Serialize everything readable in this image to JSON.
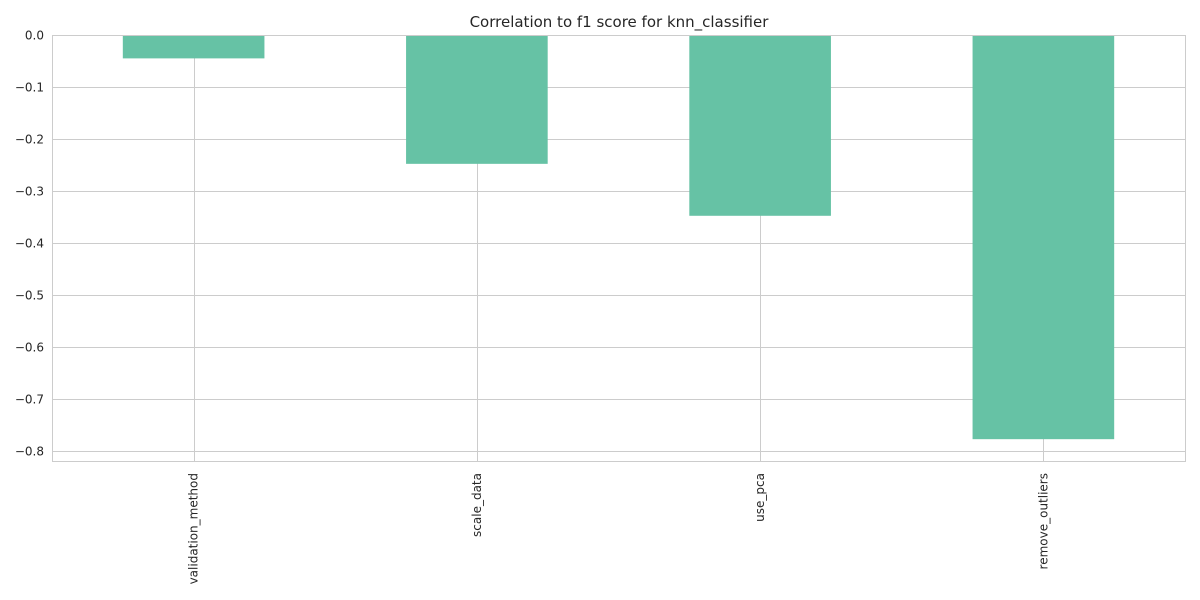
{
  "chart_data": {
    "type": "bar",
    "title": "Correlation to f1 score for knn_classifier",
    "xlabel": "",
    "ylabel": "",
    "categories": [
      "validation_method",
      "scale_data",
      "use_pca",
      "remove_outliers"
    ],
    "values": [
      -0.045,
      -0.248,
      -0.348,
      -0.778
    ],
    "ylim": [
      -0.82,
      0.0
    ],
    "yticks": [
      0.0,
      -0.1,
      -0.2,
      -0.3,
      -0.4,
      -0.5,
      -0.6,
      -0.7,
      -0.8
    ],
    "ytick_labels": [
      "0.0",
      "−0.1",
      "−0.2",
      "−0.3",
      "−0.4",
      "−0.5",
      "−0.6",
      "−0.7",
      "−0.8"
    ],
    "grid": true,
    "bar_color": "#66c2a5"
  }
}
